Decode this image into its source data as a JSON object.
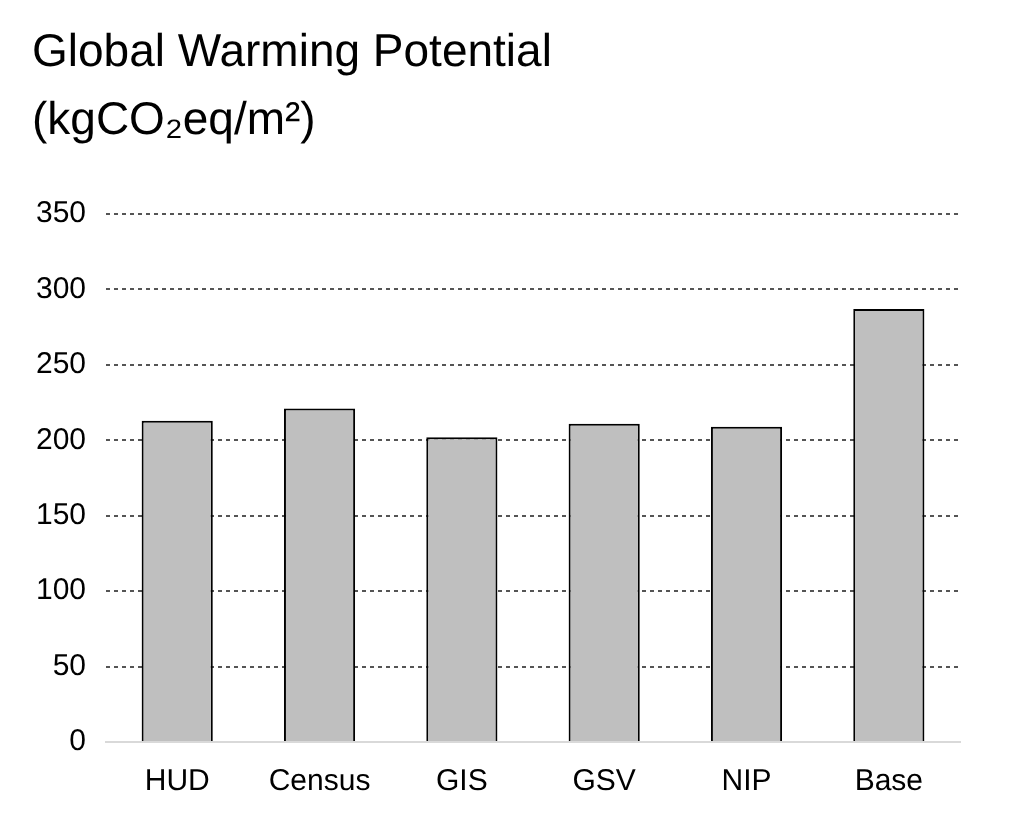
{
  "chart_data": {
    "type": "bar",
    "title": "Global Warming Potential (kgCO₂eq/m²)",
    "categories": [
      "HUD",
      "Census",
      "GIS",
      "GSV",
      "NIP",
      "Base"
    ],
    "values": [
      213,
      221,
      202,
      211,
      209,
      287
    ],
    "color": "#bfbfbf",
    "ylim": [
      0,
      350
    ],
    "yticks": [
      0,
      50,
      100,
      150,
      200,
      250,
      300,
      350
    ],
    "grid": "y"
  }
}
